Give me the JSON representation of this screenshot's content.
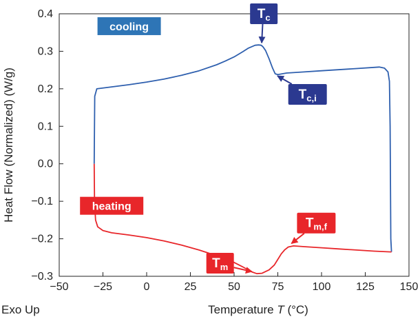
{
  "chart_data": {
    "type": "line",
    "title": "",
    "xlabel": "Temperature",
    "xlabel_symbol": "T",
    "xlabel_unit": "(°C)",
    "ylabel": "Heat Flow (Normalized) (W/g)",
    "corner_note": "Exo Up",
    "xlim": [
      -50,
      150
    ],
    "ylim": [
      -0.3,
      0.4
    ],
    "x_ticks": [
      -50,
      -25,
      0,
      25,
      50,
      75,
      100,
      125,
      150
    ],
    "x_tick_labels": [
      "−50",
      "−25",
      "0",
      "25",
      "50",
      "75",
      "100",
      "125",
      "150"
    ],
    "y_ticks": [
      -0.3,
      -0.2,
      -0.1,
      0.0,
      0.1,
      0.2,
      0.3,
      0.4
    ],
    "y_tick_labels": [
      "−0.3",
      "−0.2",
      "−0.1",
      "0.0",
      "0.1",
      "0.2",
      "0.3",
      "0.4"
    ],
    "grid": false,
    "series": [
      {
        "name": "cooling",
        "color": "#2e5fae",
        "points": [
          [
            140,
            -0.235
          ],
          [
            139.6,
            -0.2
          ],
          [
            139.2,
            0.1
          ],
          [
            138.8,
            0.22
          ],
          [
            138,
            0.245
          ],
          [
            136,
            0.255
          ],
          [
            133,
            0.258
          ],
          [
            120,
            0.254
          ],
          [
            100,
            0.248
          ],
          [
            90,
            0.245
          ],
          [
            80,
            0.242
          ],
          [
            75,
            0.238
          ],
          [
            73.5,
            0.24
          ],
          [
            72,
            0.255
          ],
          [
            70,
            0.28
          ],
          [
            68,
            0.302
          ],
          [
            66.5,
            0.312
          ],
          [
            65.5,
            0.316
          ],
          [
            64,
            0.317
          ],
          [
            62,
            0.316
          ],
          [
            58,
            0.308
          ],
          [
            55,
            0.299
          ],
          [
            50,
            0.285
          ],
          [
            45,
            0.274
          ],
          [
            40,
            0.264
          ],
          [
            30,
            0.248
          ],
          [
            20,
            0.236
          ],
          [
            10,
            0.226
          ],
          [
            0,
            0.218
          ],
          [
            -10,
            0.211
          ],
          [
            -20,
            0.205
          ],
          [
            -28.5,
            0.2
          ],
          [
            -29.7,
            0.18
          ],
          [
            -30,
            0.0
          ]
        ]
      },
      {
        "name": "heating",
        "color": "#e8262a",
        "points": [
          [
            -30,
            0.0
          ],
          [
            -29.8,
            -0.1
          ],
          [
            -29.2,
            -0.15
          ],
          [
            -28,
            -0.168
          ],
          [
            -25,
            -0.178
          ],
          [
            -20,
            -0.184
          ],
          [
            -10,
            -0.19
          ],
          [
            0,
            -0.197
          ],
          [
            10,
            -0.206
          ],
          [
            20,
            -0.217
          ],
          [
            30,
            -0.23
          ],
          [
            40,
            -0.245
          ],
          [
            50,
            -0.263
          ],
          [
            55,
            -0.275
          ],
          [
            60,
            -0.288
          ],
          [
            63,
            -0.293
          ],
          [
            66,
            -0.292
          ],
          [
            70,
            -0.283
          ],
          [
            73,
            -0.27
          ],
          [
            75,
            -0.255
          ],
          [
            77,
            -0.24
          ],
          [
            79,
            -0.229
          ],
          [
            81,
            -0.222
          ],
          [
            84,
            -0.219
          ],
          [
            90,
            -0.221
          ],
          [
            100,
            -0.224
          ],
          [
            110,
            -0.227
          ],
          [
            120,
            -0.23
          ],
          [
            130,
            -0.233
          ],
          [
            139.5,
            -0.235
          ],
          [
            140,
            -0.235
          ]
        ]
      }
    ],
    "annotations": [
      {
        "id": "tc",
        "base": "T",
        "sub": "c",
        "fill": "#2b3990",
        "point": [
          65,
          0.317
        ],
        "box_center": [
          67,
          0.4
        ],
        "arrow_color": "#2b3990"
      },
      {
        "id": "tci",
        "base": "T",
        "sub": "c,i",
        "fill": "#2b3990",
        "point": [
          74,
          0.24
        ],
        "box_center": [
          92,
          0.185
        ],
        "arrow_color": "#2b3990"
      },
      {
        "id": "tmf",
        "base": "T",
        "sub": "m,f",
        "fill": "#e8262a",
        "point": [
          82,
          -0.218
        ],
        "box_center": [
          97,
          -0.158
        ],
        "arrow_color": "#e8262a"
      },
      {
        "id": "tm",
        "base": "T",
        "sub": "m",
        "fill": "#e8262a",
        "point": [
          61,
          -0.293
        ],
        "box_center": [
          42,
          -0.265
        ],
        "arrow_color": "#e8262a"
      }
    ],
    "legend": [
      {
        "label": "cooling",
        "fill": "#2e75b6",
        "box_center": [
          -10,
          0.367
        ]
      },
      {
        "label": "heating",
        "fill": "#e8262a",
        "box_center": [
          -20,
          -0.112
        ]
      }
    ]
  }
}
